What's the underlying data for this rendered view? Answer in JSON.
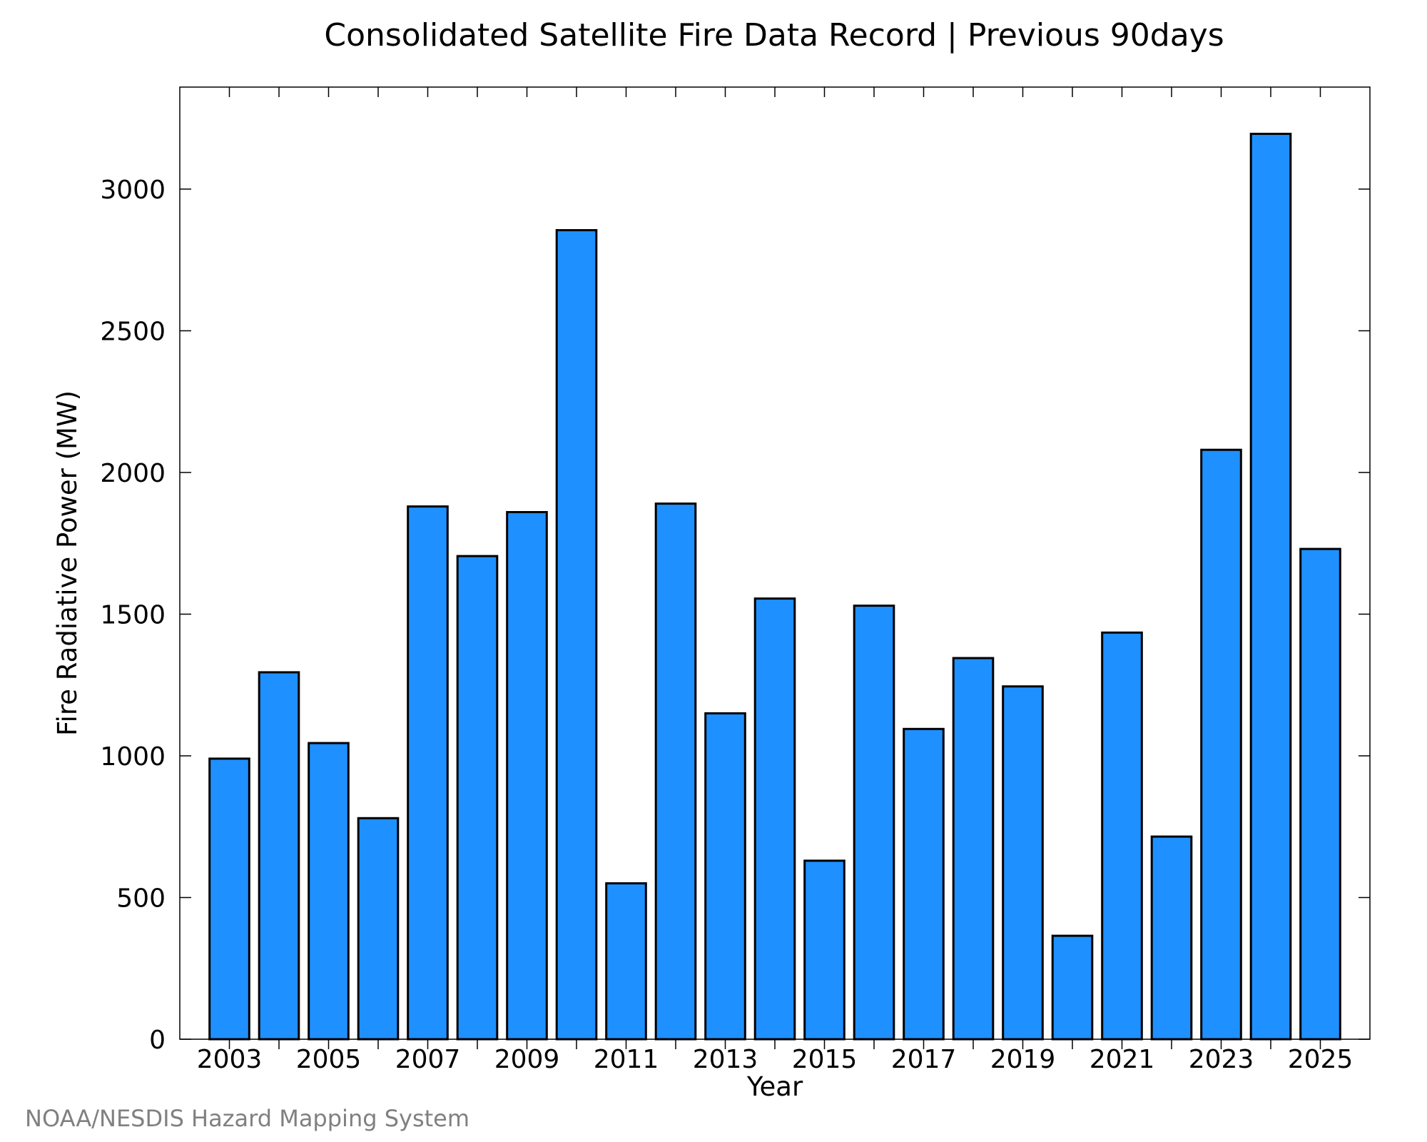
{
  "chart_data": {
    "type": "bar",
    "title": "Consolidated Satellite Fire Data Record | Previous 90days",
    "xlabel": "Year",
    "ylabel": "Fire Radiative Power (MW)",
    "categories": [
      "2003",
      "2004",
      "2005",
      "2006",
      "2007",
      "2008",
      "2009",
      "2010",
      "2011",
      "2012",
      "2013",
      "2014",
      "2015",
      "2016",
      "2017",
      "2018",
      "2019",
      "2020",
      "2021",
      "2022",
      "2023",
      "2024",
      "2025"
    ],
    "values": [
      990,
      1295,
      1045,
      780,
      1880,
      1705,
      1860,
      2855,
      550,
      1890,
      1150,
      1555,
      630,
      1530,
      1095,
      1345,
      1245,
      365,
      1435,
      715,
      2080,
      3195,
      1730
    ],
    "x_tick_labels": [
      "2003",
      "2005",
      "2007",
      "2009",
      "2011",
      "2013",
      "2015",
      "2017",
      "2019",
      "2021",
      "2023",
      "2025"
    ],
    "y_ticks": [
      0,
      500,
      1000,
      1500,
      2000,
      2500,
      3000
    ],
    "ylim": [
      0,
      3360
    ],
    "grid": false,
    "bar_color": "#1e90ff",
    "bar_edge_color": "#000000"
  },
  "credit": "NOAA/NESDIS Hazard Mapping System"
}
